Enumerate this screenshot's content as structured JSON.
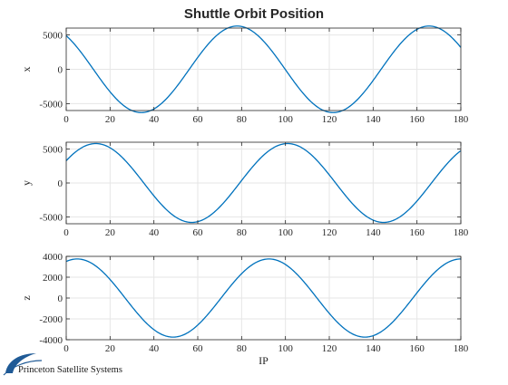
{
  "figure": {
    "title": "Shuttle Orbit Position",
    "logo_text": "Princeton Satellite Systems"
  },
  "colors": {
    "line": "#0072BD",
    "grid": "#e6e6e6",
    "axis": "#262626",
    "logo": "#1f5a96"
  },
  "chart_data": [
    {
      "type": "line",
      "title": "Shuttle Orbit Position",
      "xlabel": "",
      "ylabel": "x",
      "xlim": [
        0,
        180
      ],
      "ylim": [
        -6000,
        6000
      ],
      "xticks": [
        0,
        20,
        40,
        60,
        80,
        100,
        120,
        140,
        160,
        180
      ],
      "yticks": [
        -5000,
        0,
        5000
      ],
      "grid": true,
      "series": [
        {
          "amplitude": 6300,
          "period": 87.5,
          "peak_at": 78,
          "x_range": [
            0,
            180
          ]
        }
      ]
    },
    {
      "type": "line",
      "title": "",
      "xlabel": "",
      "ylabel": "y",
      "xlim": [
        0,
        180
      ],
      "ylim": [
        -6000,
        6000
      ],
      "xticks": [
        0,
        20,
        40,
        60,
        80,
        100,
        120,
        140,
        160,
        180
      ],
      "yticks": [
        -5000,
        0,
        5000
      ],
      "grid": true,
      "series": [
        {
          "amplitude": 5800,
          "period": 87.5,
          "peak_at": 13.5,
          "x_range": [
            0,
            180
          ]
        }
      ]
    },
    {
      "type": "line",
      "title": "",
      "xlabel": "IP",
      "ylabel": "z",
      "xlim": [
        0,
        180
      ],
      "ylim": [
        -4000,
        4000
      ],
      "xticks": [
        0,
        20,
        40,
        60,
        80,
        100,
        120,
        140,
        160,
        180
      ],
      "yticks": [
        -4000,
        -2000,
        0,
        2000,
        4000
      ],
      "grid": true,
      "series": [
        {
          "amplitude": 3750,
          "period": 87.5,
          "peak_at": 5,
          "x_range": [
            0,
            180
          ]
        }
      ]
    }
  ]
}
